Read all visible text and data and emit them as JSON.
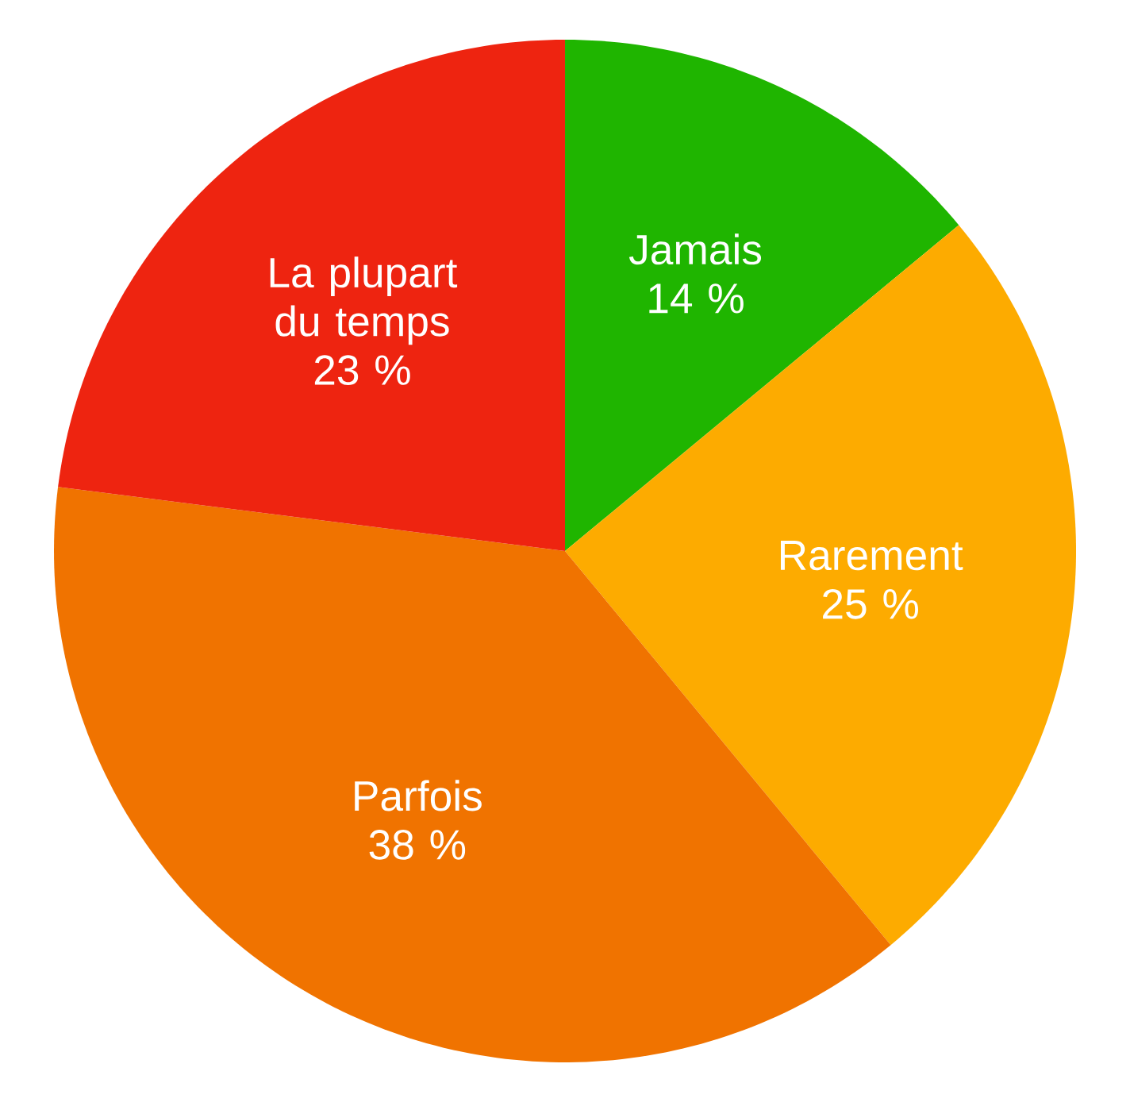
{
  "chart_data": {
    "type": "pie",
    "categories": [
      "Jamais",
      "Rarement",
      "Parfois",
      "La plupart du temps"
    ],
    "values": [
      14,
      25,
      38,
      23
    ],
    "value_labels": [
      "14 %",
      "25 %",
      "38 %",
      "23 %"
    ],
    "colors": [
      "#1fb500",
      "#fdab00",
      "#f07300",
      "#ee2410"
    ]
  }
}
